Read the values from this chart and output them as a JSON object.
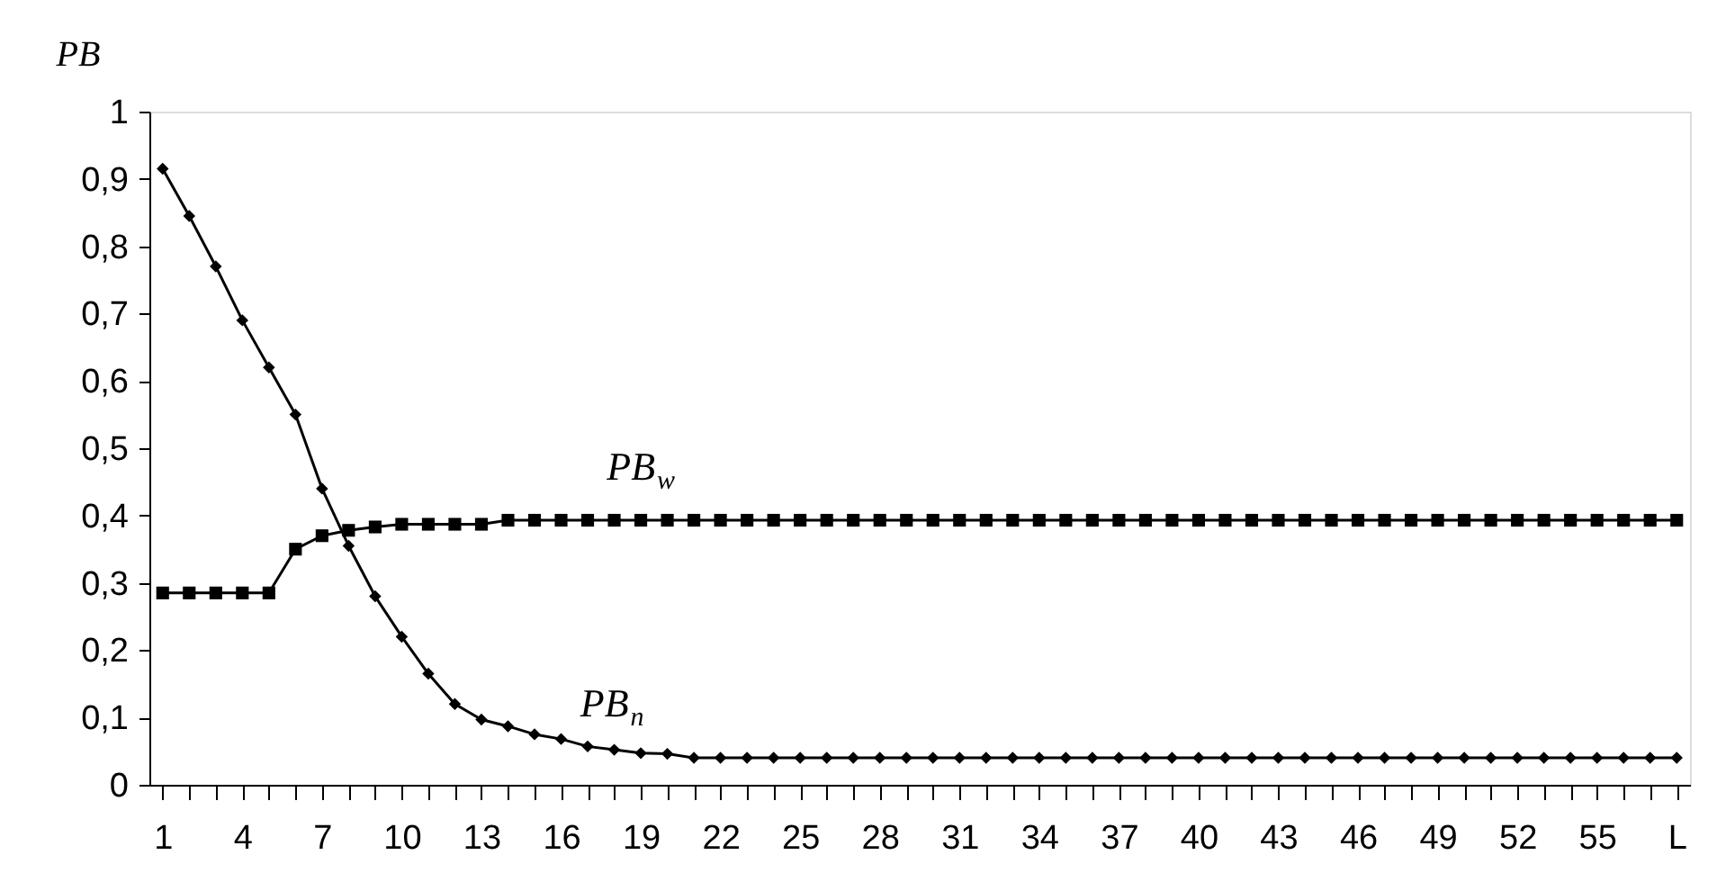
{
  "chart_data": {
    "type": "line",
    "ylabel": "PB",
    "categories": [
      "1",
      null,
      null,
      "4",
      null,
      null,
      "7",
      null,
      null,
      "10",
      null,
      null,
      "13",
      null,
      null,
      "16",
      null,
      null,
      "19",
      null,
      null,
      "22",
      null,
      null,
      "25",
      null,
      null,
      "28",
      null,
      null,
      "31",
      null,
      null,
      "34",
      null,
      null,
      "37",
      null,
      null,
      "40",
      null,
      null,
      "43",
      null,
      null,
      "46",
      null,
      null,
      "49",
      null,
      null,
      "52",
      null,
      null,
      "55",
      null,
      null,
      "L"
    ],
    "series": [
      {
        "name": "PB$_{w}$",
        "color": "#000000",
        "marker": "square",
        "values": [
          0.285,
          0.285,
          0.285,
          0.285,
          0.285,
          0.35,
          0.37,
          0.378,
          0.383,
          0.387,
          0.387,
          0.387,
          0.387,
          0.393,
          0.393,
          0.393,
          0.393,
          0.393,
          0.393,
          0.393,
          0.393,
          0.393,
          0.393,
          0.393,
          0.393,
          0.393,
          0.393,
          0.393,
          0.393,
          0.393,
          0.393,
          0.393,
          0.393,
          0.393,
          0.393,
          0.393,
          0.393,
          0.393,
          0.393,
          0.393,
          0.393,
          0.393,
          0.393,
          0.393,
          0.393,
          0.393,
          0.393,
          0.393,
          0.393,
          0.393,
          0.393,
          0.393,
          0.393,
          0.393,
          0.393,
          0.393,
          0.393,
          0.393
        ]
      },
      {
        "name": "PB$_{n}$",
        "color": "#000000",
        "marker": "diamond",
        "values": [
          0.915,
          0.845,
          0.77,
          0.69,
          0.62,
          0.55,
          0.44,
          0.355,
          0.28,
          0.22,
          0.165,
          0.12,
          0.097,
          0.087,
          0.075,
          0.068,
          0.057,
          0.052,
          0.047,
          0.046,
          0.04,
          0.04,
          0.04,
          0.04,
          0.04,
          0.04,
          0.04,
          0.04,
          0.04,
          0.04,
          0.04,
          0.04,
          0.04,
          0.04,
          0.04,
          0.04,
          0.04,
          0.04,
          0.04,
          0.04,
          0.04,
          0.04,
          0.04,
          0.04,
          0.04,
          0.04,
          0.04,
          0.04,
          0.04,
          0.04,
          0.04,
          0.04,
          0.04,
          0.04,
          0.04,
          0.04,
          0.04,
          0.04
        ]
      }
    ],
    "ylim": [
      0,
      1
    ],
    "yticks": [
      0,
      {
        "value": 0.1,
        "label": "0,1"
      },
      {
        "value": 0.2,
        "label": "0,2"
      },
      {
        "value": 0.3,
        "label": "0,3"
      },
      {
        "value": 0.4,
        "label": "0,4"
      },
      {
        "value": 0.5,
        "label": "0,5"
      },
      {
        "value": 0.6,
        "label": "0,6"
      },
      {
        "value": 0.7,
        "label": "0,7"
      },
      {
        "value": 0.8,
        "label": "0,8"
      },
      {
        "value": 0.9,
        "label": "0,9"
      },
      1
    ],
    "grid": false,
    "legend": false,
    "line_style": "solid"
  }
}
